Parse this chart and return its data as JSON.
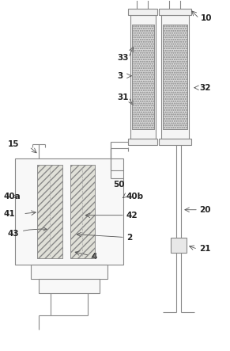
{
  "bg_color": "#ffffff",
  "line_color": "#888888",
  "label_color": "#222222",
  "fs": 7.5
}
